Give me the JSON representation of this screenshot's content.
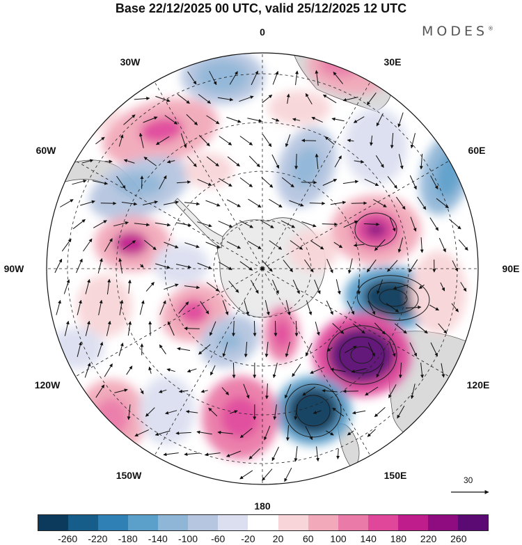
{
  "title": "Base 22/12/2025 00 UTC, valid 25/12/2025 12 UTC",
  "brand": {
    "name": "MODES",
    "mark": "®"
  },
  "longitude_labels": [
    {
      "id": "0",
      "text": "0"
    },
    {
      "id": "30E",
      "text": "30E"
    },
    {
      "id": "60E",
      "text": "60E"
    },
    {
      "id": "90E",
      "text": "90E"
    },
    {
      "id": "120E",
      "text": "120E"
    },
    {
      "id": "150E",
      "text": "150E"
    },
    {
      "id": "180",
      "text": "180"
    },
    {
      "id": "150W",
      "text": "150W"
    },
    {
      "id": "120W",
      "text": "120W"
    },
    {
      "id": "90W",
      "text": "90W"
    },
    {
      "id": "60W",
      "text": "60W"
    },
    {
      "id": "30W",
      "text": "30W"
    }
  ],
  "vector_scale": {
    "value": "30"
  },
  "colorbar": {
    "colors": [
      "#0b3a5c",
      "#165d8a",
      "#2e80b5",
      "#5b9fcb",
      "#8fb5d7",
      "#b6c5e0",
      "#dcdff0",
      "#ffffff",
      "#f8d5d8",
      "#f2a9b9",
      "#ea7aa8",
      "#e0479a",
      "#bf1d8c",
      "#8f0c80",
      "#5a0a72"
    ],
    "labels": [
      "-260",
      "-220",
      "-180",
      "-140",
      "-100",
      "-60",
      "-20",
      "20",
      "60",
      "100",
      "140",
      "180",
      "220",
      "260"
    ]
  },
  "colors": {
    "antarctica": "#ebebeb",
    "land": "#dadada",
    "coast": "#444444",
    "grid": "#222222"
  }
}
